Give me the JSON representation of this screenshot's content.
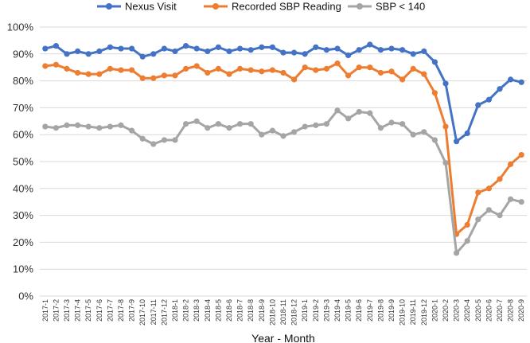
{
  "chart_data": {
    "type": "line",
    "title": "",
    "xlabel": "Year - Month",
    "ylabel": "",
    "ylim": [
      0,
      100
    ],
    "y_ticks": [
      "0%",
      "10%",
      "20%",
      "30%",
      "40%",
      "50%",
      "60%",
      "70%",
      "80%",
      "90%",
      "100%"
    ],
    "grid": true,
    "legend_position": "top",
    "categories": [
      "2017-1",
      "2017-2",
      "2017-3",
      "2017-4",
      "2017-5",
      "2017-6",
      "2017-7",
      "2017-8",
      "2017-9",
      "2017-10",
      "2017-11",
      "2017-12",
      "2018-1",
      "2018-2",
      "2018-3",
      "2018-4",
      "2018-5",
      "2018-6",
      "2018-7",
      "2018-8",
      "2018-9",
      "2018-10",
      "2018-11",
      "2018-12",
      "2019-1",
      "2019-2",
      "2019-3",
      "2019-4",
      "2019-5",
      "2019-6",
      "2019-7",
      "2019-8",
      "2019-9",
      "2019-10",
      "2019-11",
      "2019-12",
      "2020-1",
      "2020-2",
      "2020-3",
      "2020-4",
      "2020-5",
      "2020-6",
      "2020-7",
      "2020-8",
      "2020-9"
    ],
    "series": [
      {
        "name": "Nexus Visit",
        "color": "#4472C4",
        "values": [
          92,
          93,
          90,
          91,
          90,
          91,
          92.5,
          92,
          92,
          89,
          90,
          92,
          91,
          93,
          92,
          91,
          92.5,
          91,
          92,
          91.5,
          92.5,
          92.5,
          90.5,
          90.5,
          90,
          92.5,
          91.5,
          92,
          89.5,
          91.5,
          93.5,
          91.5,
          92,
          91.5,
          90,
          91,
          87,
          79,
          57.5,
          60.5,
          71,
          73,
          77,
          80.5,
          79.5
        ]
      },
      {
        "name": "Recorded SBP Reading",
        "color": "#ED7D31",
        "values": [
          85.5,
          86,
          84.5,
          83,
          82.5,
          82.5,
          84.5,
          84,
          84,
          81,
          81,
          82,
          82,
          84.5,
          85.5,
          83,
          84.5,
          82.5,
          84.5,
          84,
          83.5,
          84,
          83,
          80.5,
          85,
          84,
          84.5,
          86.5,
          82,
          85,
          85,
          83,
          83.5,
          80.5,
          84.5,
          82.5,
          75.5,
          63,
          23,
          26.5,
          38.5,
          40,
          43.5,
          49,
          52.5
        ]
      },
      {
        "name": "SBP < 140",
        "color": "#A5A5A5",
        "values": [
          63,
          62.5,
          63.5,
          63.5,
          63,
          62.5,
          63,
          63.5,
          61.5,
          58.5,
          56.5,
          58,
          58,
          64,
          65,
          62.5,
          64,
          62.5,
          64,
          64,
          60,
          61.5,
          59.5,
          61,
          63,
          63.5,
          64,
          69,
          66,
          68.5,
          68,
          62.5,
          64.5,
          64,
          60,
          61,
          58,
          49.5,
          16,
          20.5,
          28.5,
          32,
          30,
          36,
          35
        ]
      }
    ]
  }
}
